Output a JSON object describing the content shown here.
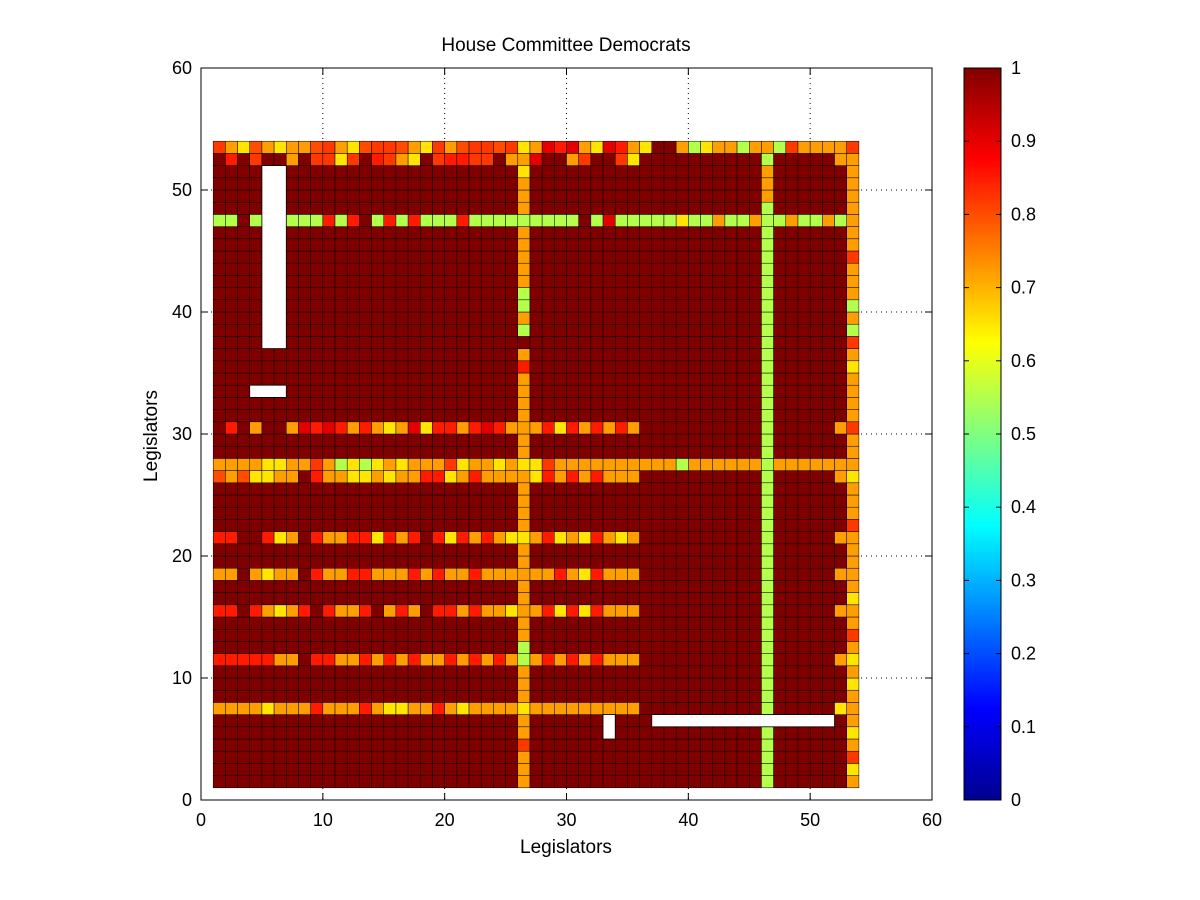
{
  "chart_data": {
    "type": "heatmap",
    "title": "House Committee Democrats",
    "xlabel": "Legislators",
    "ylabel": "Legislators",
    "xlim": [
      0,
      60
    ],
    "ylim": [
      0,
      60
    ],
    "xticks": [
      "0",
      "10",
      "20",
      "30",
      "40",
      "50",
      "60"
    ],
    "yticks": [
      "0",
      "10",
      "20",
      "30",
      "40",
      "50",
      "60"
    ],
    "grid": true,
    "colormap": "jet",
    "clim": [
      0,
      1
    ],
    "colorbar_ticks": [
      "0",
      "0.1",
      "0.2",
      "0.3",
      "0.4",
      "0.5",
      "0.6",
      "0.7",
      "0.8",
      "0.9",
      "1"
    ],
    "n_legislators": 53,
    "default_value": 1.0,
    "cell_edge_color": "#000000",
    "rows": [
      {
        "y": 53,
        "values": [
          0.82,
          0.72,
          0.65,
          0.8,
          0.72,
          0.65,
          0.72,
          0.72,
          0.8,
          0.82,
          0.72,
          0.65,
          0.8,
          0.82,
          0.82,
          0.8,
          0.72,
          0.65,
          0.82,
          0.72,
          0.8,
          0.82,
          0.82,
          0.8,
          0.82,
          0.65,
          0.72,
          0.9,
          0.85,
          0.9,
          0.72,
          0.65,
          0.9,
          0.85,
          0.72,
          0.65,
          1,
          1,
          0.72,
          0.55,
          0.65,
          0.72,
          0.72,
          0.55,
          0.72,
          0.72,
          0.55,
          0.82,
          0.72,
          0.72,
          0.72,
          0.72,
          0.82
        ]
      },
      {
        "y": 52,
        "values": [
          1,
          0.85,
          1,
          0.82,
          1,
          1,
          0.72,
          1,
          0.82,
          0.82,
          0.65,
          0.82,
          1,
          0.85,
          0.82,
          0.72,
          0.65,
          1,
          0.82,
          0.85,
          0.85,
          0.82,
          0.82,
          1,
          0.72,
          0.65,
          0.9,
          1,
          1,
          0.72,
          0.82,
          1,
          1,
          0.82,
          0.65,
          1,
          1,
          1,
          1,
          1,
          1,
          1,
          1,
          1,
          1,
          0.55,
          1,
          1,
          1,
          1,
          1,
          0.72,
          1
        ]
      },
      {
        "y": 47,
        "values": [
          0.55,
          0.55,
          1,
          0.55,
          1,
          1,
          0.55,
          0.55,
          0.55,
          0.85,
          0.55,
          0.85,
          1,
          0.55,
          0.85,
          0.55,
          0.85,
          0.55,
          0.55,
          0.55,
          0.85,
          0.55,
          0.55,
          0.55,
          0.55,
          0.9,
          0.55,
          0.55,
          0.55,
          0.55,
          1,
          0.55,
          0.9,
          0.55,
          0.55,
          0.55,
          0.55,
          0.55,
          0.65,
          0.55,
          0.55,
          0.72,
          0.55,
          0.55,
          0.72,
          0.72,
          0.55,
          0.72,
          0.55,
          0.55,
          0.72,
          0.55,
          0.9
        ]
      },
      {
        "y": 30,
        "values": [
          1,
          0.85,
          1,
          0.72,
          1,
          1,
          0.72,
          0.9,
          0.85,
          0.9,
          0.85,
          0.72,
          0.85,
          0.72,
          0.65,
          0.72,
          0.9,
          0.65,
          0.85,
          0.85,
          0.72,
          0.85,
          0.9,
          0.85,
          0.72,
          0.72,
          0.72,
          0.85,
          0.65,
          0.85,
          0.72,
          0.85,
          0.72,
          0.85,
          0.72,
          1,
          1,
          1,
          1,
          1,
          1,
          1,
          1,
          1,
          1,
          0.55,
          1,
          1,
          1,
          1,
          1,
          0.72,
          0.82
        ]
      },
      {
        "y": 27,
        "values": [
          0.72,
          0.72,
          0.72,
          0.72,
          0.65,
          0.65,
          0.72,
          0.72,
          0.82,
          0.72,
          0.55,
          0.65,
          0.55,
          0.65,
          0.72,
          0.65,
          0.72,
          0.72,
          0.72,
          0.82,
          0.65,
          0.72,
          0.72,
          0.65,
          0.72,
          0.72,
          0.65,
          0.82,
          0.72,
          0.72,
          0.72,
          0.72,
          0.72,
          0.72,
          0.72,
          0.72,
          0.72,
          0.72,
          0.55,
          0.72,
          0.72,
          0.72,
          0.72,
          0.72,
          0.72,
          0.55,
          0.72,
          0.72,
          0.72,
          0.72,
          0.72,
          0.72,
          0.65
        ]
      },
      {
        "y": 26,
        "values": [
          0.8,
          0.72,
          0.8,
          0.65,
          0.65,
          0.72,
          0.72,
          1,
          0.85,
          0.72,
          0.72,
          0.65,
          0.65,
          0.72,
          0.65,
          0.72,
          0.72,
          0.85,
          0.85,
          0.65,
          0.72,
          0.85,
          0.72,
          0.72,
          0.72,
          0.55,
          0.65,
          0.85,
          0.72,
          0.85,
          0.72,
          0.85,
          0.72,
          0.72,
          0.72,
          1,
          1,
          1,
          1,
          1,
          1,
          1,
          1,
          1,
          1,
          0.55,
          1,
          1,
          1,
          1,
          1,
          0.72,
          0.65
        ]
      },
      {
        "y": 21,
        "values": [
          0.85,
          0.85,
          1,
          1,
          0.85,
          0.65,
          0.72,
          1,
          0.85,
          0.72,
          0.72,
          0.85,
          0.85,
          0.65,
          0.85,
          0.72,
          0.85,
          1,
          0.85,
          0.65,
          0.85,
          0.72,
          0.85,
          0.72,
          0.65,
          0.55,
          0.72,
          0.85,
          0.65,
          0.72,
          0.65,
          0.85,
          0.72,
          0.65,
          0.72,
          1,
          1,
          1,
          1,
          1,
          1,
          1,
          1,
          1,
          1,
          0.55,
          1,
          1,
          1,
          1,
          1,
          0.72,
          0.82
        ]
      },
      {
        "y": 18,
        "values": [
          0.72,
          0.72,
          1,
          0.72,
          0.65,
          0.72,
          0.72,
          1,
          0.85,
          0.72,
          0.72,
          0.85,
          0.85,
          0.72,
          0.72,
          0.72,
          0.85,
          0.72,
          0.85,
          0.72,
          0.72,
          0.85,
          0.72,
          0.72,
          0.72,
          0.55,
          0.72,
          0.72,
          0.85,
          0.72,
          0.65,
          0.85,
          0.72,
          0.72,
          0.72,
          1,
          1,
          1,
          1,
          1,
          1,
          1,
          1,
          1,
          1,
          0.55,
          1,
          1,
          1,
          1,
          1,
          0.72,
          0.72
        ]
      },
      {
        "y": 15,
        "values": [
          0.85,
          0.85,
          1,
          0.85,
          0.72,
          0.65,
          0.72,
          0.85,
          1,
          0.85,
          0.72,
          0.72,
          0.85,
          1,
          0.72,
          0.85,
          0.72,
          1,
          0.85,
          0.85,
          0.72,
          0.85,
          0.72,
          0.72,
          0.65,
          0.55,
          0.72,
          0.85,
          0.65,
          0.85,
          0.65,
          0.85,
          0.72,
          0.72,
          0.72,
          1,
          1,
          1,
          1,
          1,
          1,
          1,
          1,
          1,
          1,
          0.55,
          1,
          1,
          1,
          1,
          1,
          0.72,
          0.82
        ]
      },
      {
        "y": 11,
        "values": [
          0.85,
          0.85,
          0.85,
          0.85,
          0.85,
          0.72,
          0.72,
          1,
          0.85,
          0.85,
          0.72,
          0.72,
          0.85,
          0.72,
          0.85,
          0.72,
          0.85,
          0.72,
          0.72,
          0.85,
          0.72,
          0.85,
          0.72,
          0.85,
          0.72,
          0.55,
          0.72,
          0.85,
          0.72,
          0.85,
          0.72,
          0.85,
          0.72,
          0.72,
          0.72,
          1,
          1,
          1,
          1,
          1,
          1,
          1,
          1,
          1,
          1,
          0.55,
          1,
          1,
          1,
          1,
          1,
          0.72,
          0.65
        ]
      },
      {
        "y": 7,
        "values": [
          0.72,
          0.72,
          0.72,
          0.72,
          0.65,
          0.72,
          0.72,
          0.72,
          0.85,
          0.72,
          0.72,
          0.72,
          0.85,
          0.72,
          0.65,
          0.65,
          0.72,
          0.72,
          0.85,
          0.72,
          0.65,
          0.72,
          0.72,
          0.72,
          0.72,
          0.65,
          0.72,
          0.72,
          0.72,
          0.72,
          0.72,
          0.72,
          0.72,
          0.72,
          0.72,
          1,
          1,
          1,
          1,
          1,
          1,
          1,
          1,
          1,
          1,
          0.55,
          1,
          1,
          1,
          1,
          1,
          0.65,
          0.72
        ]
      }
    ],
    "columns": [
      {
        "x": 26,
        "values": [
          0.72,
          0.72,
          0.72,
          0.82,
          0.72,
          0.72,
          0.65,
          0.72,
          0.72,
          0.72,
          0.55,
          0.55,
          0.72,
          0.72,
          0.72,
          0.72,
          0.72,
          0.72,
          0.72,
          0.72,
          0.65,
          0.72,
          0.72,
          0.72,
          0.72,
          0.72,
          0.65,
          0.72,
          0.72,
          0.72,
          0.72,
          0.72,
          0.72,
          0.72,
          0.85,
          0.72,
          1,
          0.55,
          0.72,
          0.55,
          0.55,
          0.72,
          0.72,
          0.72,
          0.72,
          0.72,
          0.55,
          0.72,
          0.72,
          0.72,
          0.65,
          0.72,
          0.65
        ]
      },
      {
        "x": 46,
        "values": [
          0.55,
          0.55,
          0.55,
          0.55,
          0.55,
          0.55,
          0.55,
          0.55,
          0.55,
          0.55,
          0.55,
          0.55,
          0.55,
          0.55,
          0.55,
          0.55,
          0.55,
          0.55,
          0.55,
          0.55,
          0.55,
          0.55,
          0.55,
          0.55,
          0.55,
          0.55,
          0.55,
          0.55,
          0.55,
          0.55,
          0.55,
          0.55,
          0.55,
          0.55,
          0.55,
          0.55,
          0.55,
          0.55,
          0.55,
          0.55,
          0.55,
          0.55,
          0.55,
          0.55,
          0.55,
          0.55,
          0.55,
          0.55,
          0.72,
          0.72,
          0.72,
          0.55,
          0.72
        ]
      },
      {
        "x": 53,
        "values": [
          0.72,
          0.65,
          0.82,
          0.72,
          0.65,
          0.72,
          0.72,
          0.72,
          0.65,
          0.72,
          0.65,
          0.72,
          0.82,
          0.72,
          0.72,
          0.65,
          0.72,
          0.72,
          0.72,
          0.72,
          0.72,
          0.82,
          0.72,
          0.72,
          0.72,
          0.65,
          0.72,
          0.72,
          0.72,
          0.82,
          0.72,
          0.72,
          0.72,
          0.72,
          0.65,
          0.72,
          0.82,
          0.55,
          0.72,
          0.55,
          0.72,
          0.72,
          0.72,
          0.82,
          0.72,
          0.72,
          0.72,
          0.72,
          0.72,
          0.72,
          0.72,
          0.72,
          0.82
        ]
      }
    ],
    "missing_blocks": [
      {
        "x": [
          5,
          6
        ],
        "y": [
          37,
          51
        ]
      },
      {
        "x": [
          4,
          6
        ],
        "y": [
          33,
          33
        ]
      },
      {
        "x": [
          33,
          33
        ],
        "y": [
          5,
          6
        ]
      },
      {
        "x": [
          37,
          51
        ],
        "y": [
          6,
          6
        ]
      }
    ]
  }
}
